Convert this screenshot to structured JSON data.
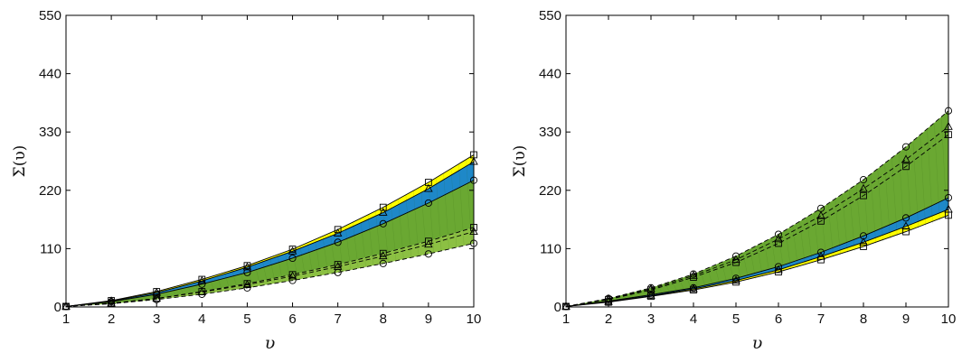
{
  "colors": {
    "yellow": "#ffff00",
    "blue": "#1e88c8",
    "green": "#6aa832",
    "light_green": "#8cc043",
    "line": "#000000"
  },
  "chart_data": [
    {
      "type": "area",
      "xlabel": "υ",
      "ylabel": "Σ(υ)",
      "xlim": [
        1,
        10
      ],
      "ylim": [
        0,
        550
      ],
      "xticks": [
        "1",
        "2",
        "3",
        "4",
        "5",
        "6",
        "7",
        "8",
        "9",
        "10"
      ],
      "yticks": [
        "0",
        "110",
        "220",
        "330",
        "440",
        "550"
      ],
      "x": [
        1,
        2,
        3,
        4,
        5,
        6,
        7,
        8,
        9,
        10
      ],
      "upper_group": {
        "square": [
          1,
          12,
          29,
          52,
          78,
          109,
          146,
          188,
          235,
          287
        ],
        "triangle": [
          1,
          11,
          27,
          49,
          75,
          105,
          139,
          178,
          223,
          274
        ],
        "circle": [
          1,
          10,
          24,
          43,
          65,
          92,
          122,
          157,
          196,
          239
        ]
      },
      "lower_group": {
        "square": [
          1,
          7,
          16,
          29,
          44,
          61,
          80,
          101,
          124,
          150
        ],
        "triangle": [
          1,
          7,
          16,
          28,
          42,
          58,
          76,
          96,
          118,
          142
        ],
        "circle": [
          1,
          6,
          14,
          24,
          36,
          50,
          65,
          82,
          100,
          120
        ]
      }
    },
    {
      "type": "area",
      "xlabel": "υ",
      "ylabel": "Σ(υ)",
      "xlim": [
        1,
        10
      ],
      "ylim": [
        0,
        550
      ],
      "xticks": [
        "1",
        "2",
        "3",
        "4",
        "5",
        "6",
        "7",
        "8",
        "9",
        "10"
      ],
      "yticks": [
        "0",
        "110",
        "220",
        "330",
        "440",
        "550"
      ],
      "x": [
        1,
        2,
        3,
        4,
        5,
        6,
        7,
        8,
        9,
        10
      ],
      "upper_group": {
        "circle": [
          1,
          16,
          36,
          62,
          96,
          137,
          186,
          240,
          302,
          370
        ],
        "triangle": [
          1,
          15,
          34,
          59,
          89,
          128,
          172,
          223,
          278,
          340
        ],
        "square": [
          1,
          14,
          32,
          56,
          84,
          120,
          162,
          210,
          265,
          325
        ]
      },
      "lower_group": {
        "circle": [
          1,
          11,
          23,
          36,
          54,
          76,
          103,
          134,
          168,
          206
        ],
        "triangle": [
          1,
          10,
          21,
          34,
          50,
          70,
          95,
          122,
          152,
          184
        ],
        "square": [
          1,
          9,
          20,
          32,
          47,
          66,
          89,
          114,
          142,
          173
        ]
      }
    }
  ]
}
